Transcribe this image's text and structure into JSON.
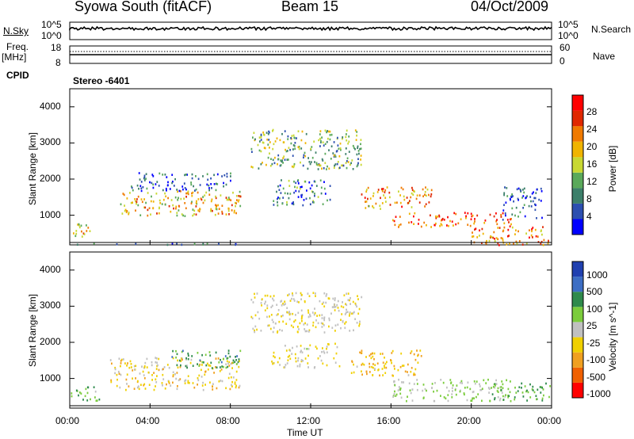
{
  "header": {
    "station": "Syowa South (fitACF)",
    "beam": "Beam 15",
    "date": "04/Oct/2009"
  },
  "top_panels": {
    "nsky_label": "N.Sky",
    "nsky_ticks": [
      "10^5",
      "10^0"
    ],
    "nsearch_label": "N.Search",
    "nsearch_ticks": [
      "10^5",
      "10^0"
    ],
    "freq_label": "Freq.",
    "freq_unit": "[MHz]",
    "freq_ticks": [
      "18",
      "8"
    ],
    "nave_label": "Nave",
    "nave_ticks": [
      "60",
      "0"
    ],
    "cpid_label": "CPID",
    "cpid_value": "Stereo -6401"
  },
  "colors": {
    "power_scale": [
      "#0000ff",
      "#2c4fb0",
      "#3c7f6a",
      "#5aa95a",
      "#c8d832",
      "#f0b400",
      "#f07a00",
      "#e02800",
      "#ff0000"
    ],
    "velocity_scale": [
      "#2040b0",
      "#3d6ec4",
      "#2f8a4c",
      "#7bcc3c",
      "#c0c0c0",
      "#f0d000",
      "#f0a020",
      "#f06000",
      "#ff0000"
    ]
  },
  "chart_data": [
    {
      "type": "heatmap",
      "title": "",
      "xlabel": "",
      "ylabel": "Slant Range [km]",
      "x_ticks": [
        "00:00",
        "04:00",
        "08:00",
        "12:00",
        "16:00",
        "20:00",
        "00:00"
      ],
      "y_ticks": [
        "1000",
        "2000",
        "3000",
        "4000"
      ],
      "ylim": [
        180,
        4500
      ],
      "x_range_hours": [
        0,
        24
      ],
      "colorbar": {
        "label": "Power [dB]",
        "ticks": [
          "4",
          "8",
          "12",
          "16",
          "20",
          "24",
          "28"
        ],
        "range": [
          0,
          30
        ]
      },
      "regions": [
        {
          "t": [
            0.0,
            1.0
          ],
          "r": [
            400,
            800
          ],
          "value": 18
        },
        {
          "t": [
            0.3,
            9.5
          ],
          "r": [
            200,
            250
          ],
          "value": 6
        },
        {
          "t": [
            2.5,
            8.5
          ],
          "r": [
            1000,
            1700
          ],
          "value": 18
        },
        {
          "t": [
            3.0,
            8.0
          ],
          "r": [
            1700,
            2200
          ],
          "value": 6
        },
        {
          "t": [
            10.0,
            13.0
          ],
          "r": [
            1300,
            2000
          ],
          "value": 8
        },
        {
          "t": [
            9.0,
            14.5
          ],
          "r": [
            2300,
            3400
          ],
          "value": 12
        },
        {
          "t": [
            14.5,
            18.0
          ],
          "r": [
            1200,
            1800
          ],
          "value": 20
        },
        {
          "t": [
            16.0,
            22.0
          ],
          "r": [
            700,
            1100
          ],
          "value": 24
        },
        {
          "t": [
            20.0,
            24.0
          ],
          "r": [
            200,
            700
          ],
          "value": 22
        },
        {
          "t": [
            21.5,
            23.5
          ],
          "r": [
            900,
            1800
          ],
          "value": 6
        }
      ]
    },
    {
      "type": "heatmap",
      "title": "",
      "xlabel": "Time UT",
      "ylabel": "Slant Range [km]",
      "x_ticks": [
        "00:00",
        "04:00",
        "08:00",
        "12:00",
        "16:00",
        "20:00",
        "00:00"
      ],
      "y_ticks": [
        "1000",
        "2000",
        "3000",
        "4000"
      ],
      "ylim": [
        180,
        4500
      ],
      "x_range_hours": [
        0,
        24
      ],
      "colorbar": {
        "label": "Velocity [m s^-1]",
        "ticks": [
          "1000",
          "500",
          "100",
          "25",
          "-25",
          "-100",
          "-500",
          "-1000"
        ],
        "range": [
          -1000,
          1000
        ]
      },
      "regions": [
        {
          "t": [
            0.0,
            1.5
          ],
          "r": [
            400,
            800
          ],
          "value": 300
        },
        {
          "t": [
            2.0,
            8.5
          ],
          "r": [
            700,
            1600
          ],
          "value": -200
        },
        {
          "t": [
            5.0,
            8.5
          ],
          "r": [
            1300,
            1800
          ],
          "value": 400
        },
        {
          "t": [
            10.0,
            13.5
          ],
          "r": [
            1300,
            2000
          ],
          "value": -80
        },
        {
          "t": [
            9.0,
            14.5
          ],
          "r": [
            2300,
            3400
          ],
          "value": -100
        },
        {
          "t": [
            14.0,
            17.5
          ],
          "r": [
            1100,
            1800
          ],
          "value": -300
        },
        {
          "t": [
            16.0,
            22.0
          ],
          "r": [
            400,
            1000
          ],
          "value": 120
        },
        {
          "t": [
            21.0,
            24.0
          ],
          "r": [
            400,
            900
          ],
          "value": 350
        }
      ]
    }
  ]
}
